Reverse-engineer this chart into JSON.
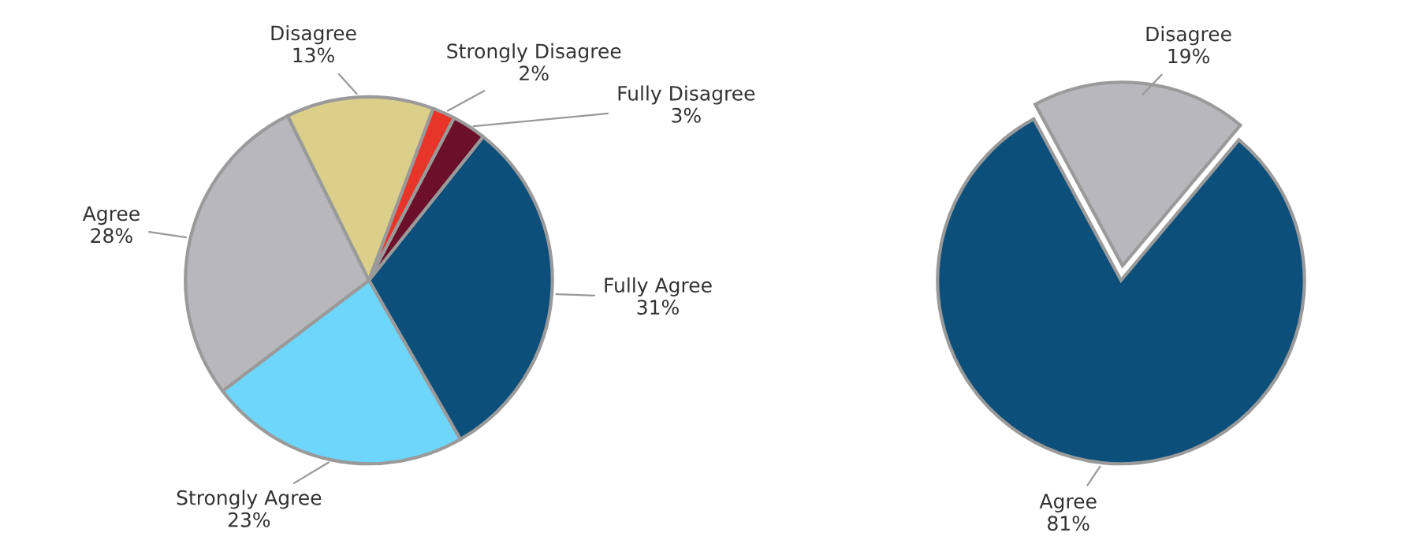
{
  "chart_data": [
    {
      "type": "pie",
      "categories": [
        "Fully Agree",
        "Strongly Agree",
        "Agree",
        "Disagree",
        "Strongly Disagree",
        "Fully Disagree"
      ],
      "values": [
        31,
        23,
        28,
        13,
        2,
        3
      ],
      "value_labels": [
        "31%",
        "23%",
        "28%",
        "13%",
        "2%",
        "3%"
      ],
      "colors": [
        "#0b4f7a",
        "#6fd6fb",
        "#b8b8bc",
        "#dccf8a",
        "#e8352a",
        "#6b0f2a"
      ],
      "legend": false
    },
    {
      "type": "pie",
      "categories": [
        "Agree",
        "Disagree"
      ],
      "values": [
        81,
        19
      ],
      "value_labels": [
        "81%",
        "19%"
      ],
      "colors": [
        "#0b4f7a",
        "#b8b8bc"
      ],
      "legend": false
    }
  ]
}
